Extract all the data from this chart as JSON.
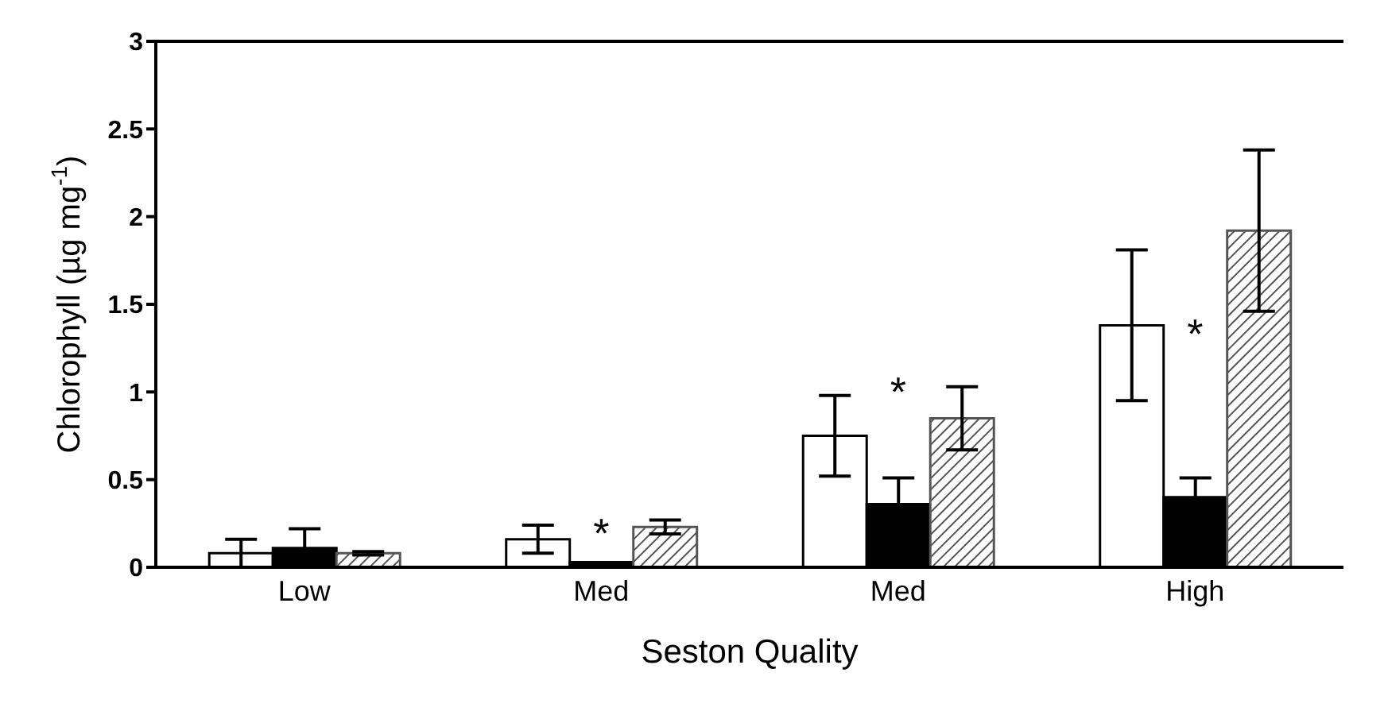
{
  "chart_data": {
    "type": "bar",
    "xlabel": "Seston Quality",
    "ylabel": "Chlorophyll (µg mg$^{-1}$)",
    "categories": [
      "Low",
      "Med",
      "Med",
      "High"
    ],
    "series": [
      {
        "color": "#ffffff",
        "values": [
          0.08,
          0.16,
          0.75,
          1.38
        ],
        "errors": [
          0.08,
          0.08,
          0.23,
          0.43
        ]
      },
      {
        "color": "#000000",
        "values": [
          0.11,
          0.03,
          0.36,
          0.4
        ],
        "errors": [
          0.11,
          null,
          0.15,
          0.11
        ]
      },
      {
        "color": "#555555",
        "values": [
          0.08,
          0.23,
          0.85,
          1.92
        ],
        "errors": [
          0.01,
          0.04,
          0.18,
          0.46
        ]
      }
    ],
    "ylim": [
      0,
      3
    ],
    "yticks": [
      0,
      0.5,
      1,
      1.5,
      2,
      2.5,
      3
    ],
    "grid": false,
    "legend": false,
    "annotations": [
      "*",
      "*",
      "*"
    ]
  }
}
